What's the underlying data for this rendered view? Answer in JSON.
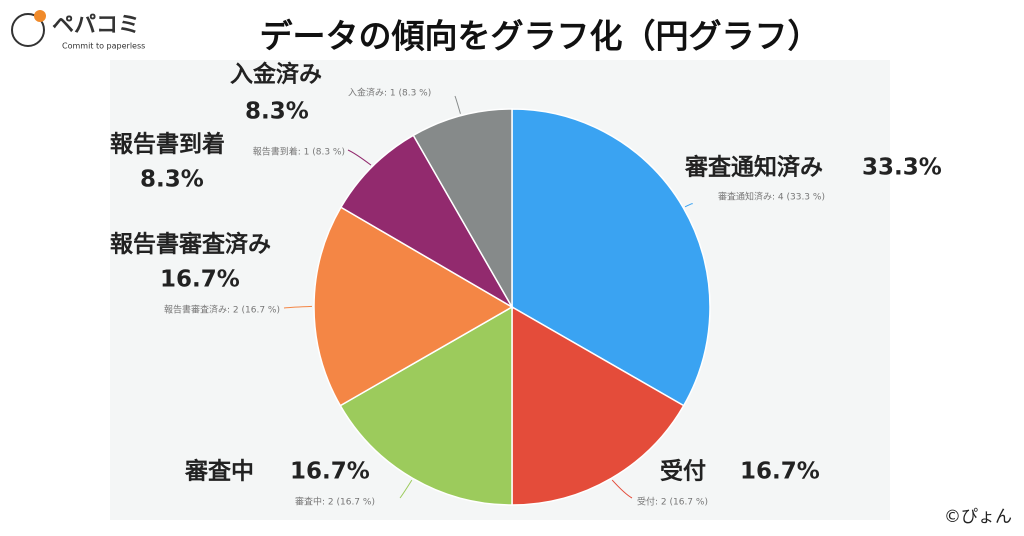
{
  "brand": {
    "name": "ペパコミ",
    "tagline": "Commit to paperless"
  },
  "credit": "©ぴょん",
  "chart_data": {
    "type": "pie",
    "title": "データの傾向をグラフ化（円グラフ）",
    "categories": [
      "審査通知済み",
      "受付",
      "審査中",
      "報告書審査済み",
      "報告書到着",
      "入金済み"
    ],
    "values": [
      33.3,
      16.7,
      16.7,
      16.7,
      8.3,
      8.3
    ],
    "value_labels": [
      "33.3%",
      "16.7%",
      "16.7%",
      "16.7%",
      "8.3%",
      "8.3%"
    ],
    "detail_labels": [
      "審査通知済み: 4 (33.3 %)",
      "受付: 2 (16.7 %)",
      "審査中: 2 (16.7 %)",
      "報告書審査済み: 2 (16.7 %)",
      "報告書到着: 1 (8.3 %)",
      "入金済み: 1 (8.3 %)"
    ],
    "colors": [
      "#3aa3f2",
      "#e44c3a",
      "#9ccb5c",
      "#f48645",
      "#922a6e",
      "#868a8a"
    ]
  }
}
